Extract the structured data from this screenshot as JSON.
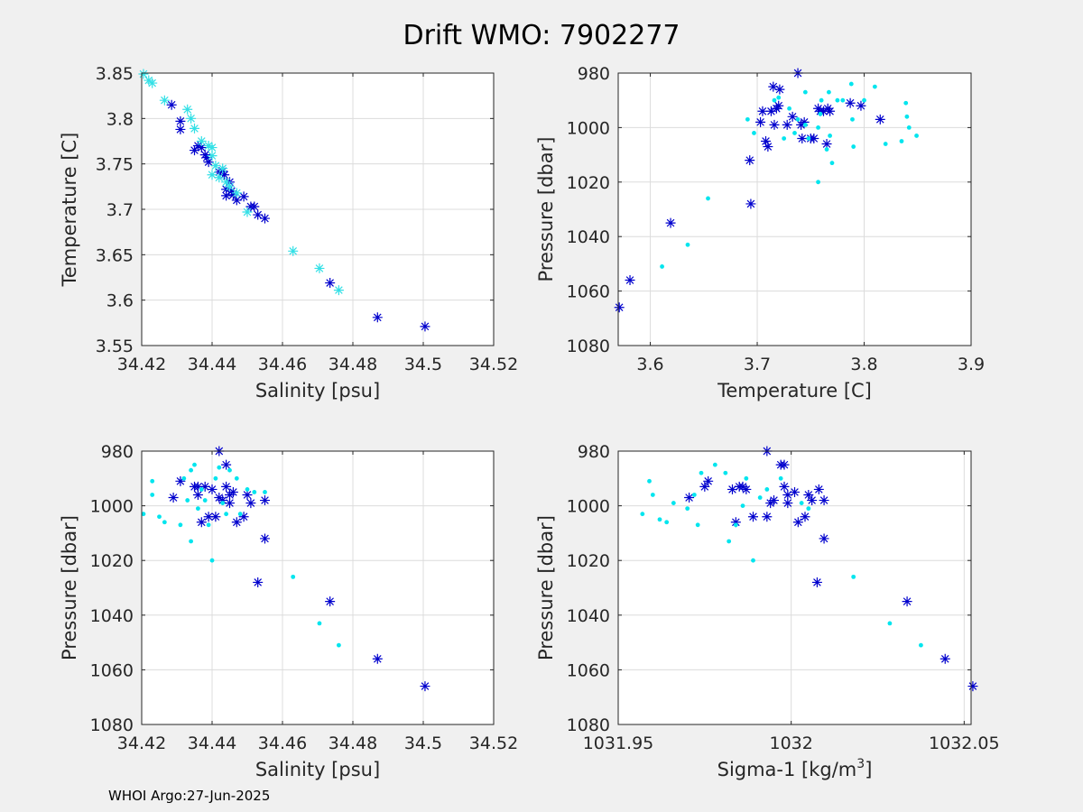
{
  "figure": {
    "title": "Drift WMO: 7902277",
    "footer": "WHOI Argo:27-Jun-2025"
  },
  "colors": {
    "background": "#f0f0f0",
    "axes_bg": "#ffffff",
    "axis_line": "#262626",
    "grid": "#dcdcdc",
    "series_star": "#0000cd",
    "series_cyan_star": "#33e0e6",
    "series_dot": "#00e5ee"
  },
  "chart_data": [
    {
      "type": "scatter",
      "xlabel": "Salinity [psu]",
      "ylabel": "Temperature [C]",
      "xlim": [
        34.42,
        34.52
      ],
      "ylim": [
        3.55,
        3.85
      ],
      "y_reversed": false,
      "xticks": [
        "34.42",
        "34.44",
        "34.46",
        "34.48",
        "34.5",
        "34.52"
      ],
      "yticks": [
        "3.55",
        "3.6",
        "3.65",
        "3.7",
        "3.75",
        "3.8",
        "3.85"
      ],
      "grid": true,
      "series": [
        {
          "marker": "star",
          "color_key": "series_star",
          "points": [
            [
              34.4285,
              3.815
            ],
            [
              34.431,
              3.797
            ],
            [
              34.431,
              3.788
            ],
            [
              34.435,
              3.765
            ],
            [
              34.436,
              3.77
            ],
            [
              34.437,
              3.768
            ],
            [
              34.438,
              3.76
            ],
            [
              34.4385,
              3.757
            ],
            [
              34.439,
              3.752
            ],
            [
              34.442,
              3.741
            ],
            [
              34.443,
              3.742
            ],
            [
              34.4435,
              3.738
            ],
            [
              34.444,
              3.722
            ],
            [
              34.444,
              3.715
            ],
            [
              34.445,
              3.73
            ],
            [
              34.4455,
              3.72
            ],
            [
              34.446,
              3.716
            ],
            [
              34.447,
              3.71
            ],
            [
              34.449,
              3.714
            ],
            [
              34.451,
              3.703
            ],
            [
              34.452,
              3.703
            ],
            [
              34.453,
              3.694
            ],
            [
              34.455,
              3.69
            ],
            [
              34.4735,
              3.619
            ],
            [
              34.487,
              3.581
            ],
            [
              34.5005,
              3.571
            ]
          ]
        },
        {
          "marker": "star",
          "color_key": "series_cyan_star",
          "points": [
            [
              34.4205,
              3.849
            ],
            [
              34.422,
              3.842
            ],
            [
              34.423,
              3.839
            ],
            [
              34.4265,
              3.82
            ],
            [
              34.433,
              3.81
            ],
            [
              34.434,
              3.8
            ],
            [
              34.435,
              3.789
            ],
            [
              34.437,
              3.775
            ],
            [
              34.439,
              3.77
            ],
            [
              34.44,
              3.768
            ],
            [
              34.44,
              3.759
            ],
            [
              34.441,
              3.748
            ],
            [
              34.44,
              3.738
            ],
            [
              34.442,
              3.735
            ],
            [
              34.443,
              3.745
            ],
            [
              34.444,
              3.73
            ],
            [
              34.445,
              3.725
            ],
            [
              34.447,
              3.718
            ],
            [
              34.45,
              3.697
            ],
            [
              34.463,
              3.654
            ],
            [
              34.4705,
              3.635
            ],
            [
              34.476,
              3.611
            ]
          ]
        }
      ]
    },
    {
      "type": "scatter",
      "xlabel": "Temperature [C]",
      "ylabel": "Pressure [dbar]",
      "xlim": [
        3.57,
        3.9
      ],
      "ylim": [
        980,
        1080
      ],
      "y_reversed": true,
      "xticks": [
        "3.6",
        "3.7",
        "3.8",
        "3.9"
      ],
      "yticks": [
        "980",
        "1000",
        "1020",
        "1040",
        "1060",
        "1080"
      ],
      "grid": true,
      "series": [
        {
          "marker": "star",
          "color_key": "series_star",
          "points": [
            [
              3.571,
              1066
            ],
            [
              3.581,
              1056
            ],
            [
              3.619,
              1035
            ],
            [
              3.693,
              1012
            ],
            [
              3.694,
              1028
            ],
            [
              3.703,
              998
            ],
            [
              3.705,
              994
            ],
            [
              3.708,
              1005
            ],
            [
              3.71,
              1007
            ],
            [
              3.713,
              994
            ],
            [
              3.715,
              985
            ],
            [
              3.716,
              999
            ],
            [
              3.718,
              993
            ],
            [
              3.72,
              992
            ],
            [
              3.721,
              986
            ],
            [
              3.728,
              999
            ],
            [
              3.733,
              996
            ],
            [
              3.738,
              980
            ],
            [
              3.741,
              999
            ],
            [
              3.742,
              1004
            ],
            [
              3.744,
              998
            ],
            [
              3.75,
              1004
            ],
            [
              3.753,
              1004
            ],
            [
              3.757,
              993
            ],
            [
              3.759,
              994
            ],
            [
              3.762,
              994
            ],
            [
              3.765,
              1006
            ],
            [
              3.766,
              993
            ],
            [
              3.768,
              994
            ],
            [
              3.787,
              991
            ],
            [
              3.797,
              992
            ],
            [
              3.815,
              997
            ]
          ]
        },
        {
          "marker": "dot",
          "color_key": "series_dot",
          "points": [
            [
              3.611,
              1051
            ],
            [
              3.635,
              1043
            ],
            [
              3.654,
              1026
            ],
            [
              3.691,
              997
            ],
            [
              3.697,
              1002
            ],
            [
              3.716,
              990
            ],
            [
              3.72,
              989
            ],
            [
              3.725,
              1004
            ],
            [
              3.73,
              993
            ],
            [
              3.735,
              1002
            ],
            [
              3.738,
              997
            ],
            [
              3.745,
              987
            ],
            [
              3.745,
              999
            ],
            [
              3.748,
              1004
            ],
            [
              3.757,
              1000
            ],
            [
              3.757,
              1020
            ],
            [
              3.759,
              995
            ],
            [
              3.76,
              990
            ],
            [
              3.765,
              1008
            ],
            [
              3.767,
              987
            ],
            [
              3.768,
              1003
            ],
            [
              3.77,
              1013
            ],
            [
              3.775,
              990
            ],
            [
              3.78,
              990
            ],
            [
              3.788,
              984
            ],
            [
              3.789,
              997
            ],
            [
              3.79,
              1007
            ],
            [
              3.8,
              990
            ],
            [
              3.81,
              985
            ],
            [
              3.82,
              1006
            ],
            [
              3.835,
              1005
            ],
            [
              3.839,
              991
            ],
            [
              3.84,
              996
            ],
            [
              3.842,
              1000
            ],
            [
              3.849,
              1003
            ]
          ]
        }
      ]
    },
    {
      "type": "scatter",
      "xlabel": "Salinity [psu]",
      "ylabel": "Pressure [dbar]",
      "xlim": [
        34.42,
        34.52
      ],
      "ylim": [
        980,
        1080
      ],
      "y_reversed": true,
      "xticks": [
        "34.42",
        "34.44",
        "34.46",
        "34.48",
        "34.5",
        "34.52"
      ],
      "yticks": [
        "980",
        "1000",
        "1020",
        "1040",
        "1060",
        "1080"
      ],
      "grid": true,
      "series": [
        {
          "marker": "star",
          "color_key": "series_star",
          "points": [
            [
              34.429,
              997
            ],
            [
              34.431,
              991
            ],
            [
              34.435,
              993
            ],
            [
              34.436,
              996
            ],
            [
              34.436,
              993
            ],
            [
              34.437,
              1006
            ],
            [
              34.438,
              993
            ],
            [
              34.439,
              1004
            ],
            [
              34.44,
              994
            ],
            [
              34.441,
              1004
            ],
            [
              34.442,
              980
            ],
            [
              34.442,
              997
            ],
            [
              34.443,
              998
            ],
            [
              34.444,
              985
            ],
            [
              34.444,
              993
            ],
            [
              34.445,
              996
            ],
            [
              34.445,
              999
            ],
            [
              34.446,
              995
            ],
            [
              34.447,
              1006
            ],
            [
              34.449,
              1004
            ],
            [
              34.45,
              996
            ],
            [
              34.451,
              999
            ],
            [
              34.453,
              1028
            ],
            [
              34.455,
              998
            ],
            [
              34.455,
              1012
            ],
            [
              34.4735,
              1035
            ],
            [
              34.487,
              1056
            ],
            [
              34.5005,
              1066
            ]
          ]
        },
        {
          "marker": "dot",
          "color_key": "series_dot",
          "points": [
            [
              34.4205,
              1003
            ],
            [
              34.423,
              991
            ],
            [
              34.423,
              996
            ],
            [
              34.425,
              1004
            ],
            [
              34.4265,
              1006
            ],
            [
              34.431,
              1007
            ],
            [
              34.432,
              990
            ],
            [
              34.433,
              998
            ],
            [
              34.434,
              987
            ],
            [
              34.434,
              1013
            ],
            [
              34.435,
              985
            ],
            [
              34.436,
              1001
            ],
            [
              34.437,
              994
            ],
            [
              34.438,
              998
            ],
            [
              34.439,
              1007
            ],
            [
              34.44,
              1020
            ],
            [
              34.441,
              990
            ],
            [
              34.442,
              986
            ],
            [
              34.443,
              999
            ],
            [
              34.444,
              1003
            ],
            [
              34.445,
              987
            ],
            [
              34.447,
              990
            ],
            [
              34.448,
              1003
            ],
            [
              34.45,
              994
            ],
            [
              34.452,
              995
            ],
            [
              34.455,
              995
            ],
            [
              34.463,
              1026
            ],
            [
              34.4705,
              1043
            ],
            [
              34.476,
              1051
            ]
          ]
        }
      ]
    },
    {
      "type": "scatter",
      "xlabel": "Sigma-1 [kg/m",
      "xlabel_superscript": "3",
      "xlabel_suffix": "]",
      "ylabel": "Pressure [dbar]",
      "xlim": [
        1031.95,
        1032.052
      ],
      "ylim": [
        980,
        1080
      ],
      "y_reversed": true,
      "xticks": [
        "1031.95",
        "1032",
        "1032.05"
      ],
      "yticks": [
        "980",
        "1000",
        "1020",
        "1040",
        "1060",
        "1080"
      ],
      "grid": true,
      "series": [
        {
          "marker": "star",
          "color_key": "series_star",
          "points": [
            [
              1031.9705,
              997
            ],
            [
              1031.975,
              993
            ],
            [
              1031.976,
              991
            ],
            [
              1031.983,
              994
            ],
            [
              1031.984,
              1006
            ],
            [
              1031.985,
              993
            ],
            [
              1031.986,
              993
            ],
            [
              1031.987,
              994
            ],
            [
              1031.989,
              1004
            ],
            [
              1031.993,
              1004
            ],
            [
              1031.993,
              980
            ],
            [
              1031.994,
              999
            ],
            [
              1031.995,
              998
            ],
            [
              1031.997,
              985
            ],
            [
              1031.998,
              985
            ],
            [
              1031.998,
              993
            ],
            [
              1031.999,
              996
            ],
            [
              1031.999,
              999
            ],
            [
              1032.001,
              995
            ],
            [
              1032.002,
              1006
            ],
            [
              1032.004,
              1004
            ],
            [
              1032.005,
              996
            ],
            [
              1032.006,
              998
            ],
            [
              1032.008,
              994
            ],
            [
              1032.0075,
              1028
            ],
            [
              1032.0095,
              1012
            ],
            [
              1032.0095,
              998
            ],
            [
              1032.0335,
              1035
            ],
            [
              1032.0445,
              1056
            ],
            [
              1032.0525,
              1066
            ]
          ]
        },
        {
          "marker": "dot",
          "color_key": "series_dot",
          "points": [
            [
              1031.957,
              1003
            ],
            [
              1031.959,
              991
            ],
            [
              1031.96,
              996
            ],
            [
              1031.962,
              1005
            ],
            [
              1031.964,
              1006
            ],
            [
              1031.966,
              999
            ],
            [
              1031.97,
              1001
            ],
            [
              1031.972,
              996
            ],
            [
              1031.973,
              1007
            ],
            [
              1031.974,
              988
            ],
            [
              1031.978,
              985
            ],
            [
              1031.982,
              1013
            ],
            [
              1031.981,
              988
            ],
            [
              1031.984,
              1007
            ],
            [
              1031.986,
              1000
            ],
            [
              1031.987,
              990
            ],
            [
              1031.989,
              1020
            ],
            [
              1031.991,
              997
            ],
            [
              1031.993,
              994
            ],
            [
              1031.997,
              990
            ],
            [
              1032.003,
              999
            ],
            [
              1032.005,
              1001
            ],
            [
              1032.018,
              1026
            ],
            [
              1032.0285,
              1043
            ],
            [
              1032.0375,
              1051
            ]
          ]
        }
      ]
    }
  ]
}
